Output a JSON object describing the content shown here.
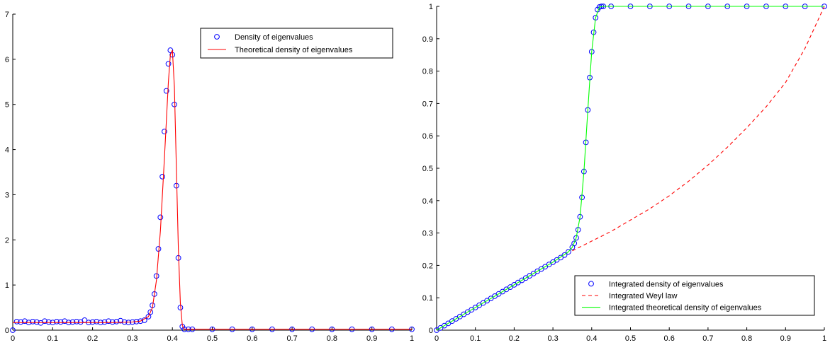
{
  "chart_data": [
    {
      "type": "scatter",
      "title": "",
      "xlabel": "",
      "ylabel": "",
      "xlim": [
        0,
        1
      ],
      "ylim": [
        0,
        7
      ],
      "xticks": [
        0,
        0.1,
        0.2,
        0.3,
        0.4,
        0.5,
        0.6,
        0.7,
        0.8,
        0.9,
        1
      ],
      "yticks": [
        0,
        1,
        2,
        3,
        4,
        5,
        6,
        7
      ],
      "xtick_labels": [
        "0",
        "0.1",
        "0.2",
        "0.3",
        "0.4",
        "0.5",
        "0.6",
        "0.7",
        "0.8",
        "0.9",
        "1"
      ],
      "ytick_labels": [
        "0",
        "1",
        "2",
        "3",
        "4",
        "5",
        "6",
        "7"
      ],
      "grid": false,
      "legend_position": "top-right",
      "series": [
        {
          "name": "Density of eigenvalues",
          "style": "markers",
          "marker": "circle",
          "color": "#0000ff",
          "x": [
            0,
            0.01,
            0.02,
            0.03,
            0.04,
            0.05,
            0.06,
            0.07,
            0.08,
            0.09,
            0.1,
            0.11,
            0.12,
            0.13,
            0.14,
            0.15,
            0.16,
            0.17,
            0.18,
            0.19,
            0.2,
            0.21,
            0.22,
            0.23,
            0.24,
            0.25,
            0.26,
            0.27,
            0.28,
            0.29,
            0.3,
            0.31,
            0.32,
            0.33,
            0.34,
            0.345,
            0.35,
            0.355,
            0.36,
            0.365,
            0.37,
            0.375,
            0.38,
            0.385,
            0.39,
            0.395,
            0.4,
            0.405,
            0.41,
            0.415,
            0.42,
            0.425,
            0.43,
            0.44,
            0.45,
            0.5,
            0.55,
            0.6,
            0.65,
            0.7,
            0.75,
            0.8,
            0.85,
            0.9,
            0.95,
            1.0
          ],
          "y": [
            0.0,
            0.19,
            0.18,
            0.2,
            0.17,
            0.19,
            0.18,
            0.16,
            0.2,
            0.18,
            0.17,
            0.19,
            0.18,
            0.2,
            0.17,
            0.18,
            0.19,
            0.18,
            0.22,
            0.17,
            0.18,
            0.19,
            0.17,
            0.18,
            0.2,
            0.18,
            0.19,
            0.21,
            0.18,
            0.17,
            0.18,
            0.19,
            0.2,
            0.22,
            0.3,
            0.4,
            0.55,
            0.8,
            1.2,
            1.8,
            2.5,
            3.4,
            4.4,
            5.3,
            5.9,
            6.2,
            6.1,
            5.0,
            3.2,
            1.6,
            0.5,
            0.08,
            0.02,
            0.02,
            0.02,
            0.02,
            0.02,
            0.02,
            0.02,
            0.02,
            0.02,
            0.02,
            0.02,
            0.02,
            0.02,
            0.02
          ]
        },
        {
          "name": "Theoretical density of eigenvalues",
          "style": "line",
          "color": "#ff0000",
          "x": [
            0,
            0.05,
            0.1,
            0.15,
            0.2,
            0.25,
            0.3,
            0.32,
            0.34,
            0.35,
            0.36,
            0.37,
            0.38,
            0.39,
            0.395,
            0.4,
            0.405,
            0.41,
            0.415,
            0.42,
            0.425,
            0.43,
            0.5,
            0.6,
            0.7,
            0.8,
            0.9,
            1.0
          ],
          "y": [
            0.17,
            0.17,
            0.17,
            0.17,
            0.17,
            0.17,
            0.18,
            0.2,
            0.3,
            0.5,
            1.1,
            2.2,
            3.8,
            5.5,
            6.1,
            6.2,
            5.4,
            3.6,
            1.8,
            0.6,
            0.1,
            0.02,
            0.02,
            0.02,
            0.02,
            0.02,
            0.02,
            0.02
          ]
        }
      ]
    },
    {
      "type": "line",
      "title": "",
      "xlabel": "",
      "ylabel": "",
      "xlim": [
        0,
        1
      ],
      "ylim": [
        0,
        1
      ],
      "xticks": [
        0,
        0.1,
        0.2,
        0.3,
        0.4,
        0.5,
        0.6,
        0.7,
        0.8,
        0.9,
        1
      ],
      "yticks": [
        0,
        0.1,
        0.2,
        0.3,
        0.4,
        0.5,
        0.6,
        0.7,
        0.8,
        0.9,
        1
      ],
      "xtick_labels": [
        "0",
        "0.1",
        "0.2",
        "0.3",
        "0.4",
        "0.5",
        "0.6",
        "0.7",
        "0.8",
        "0.9",
        "1"
      ],
      "ytick_labels": [
        "0",
        "0.1",
        "0.2",
        "0.3",
        "0.4",
        "0.5",
        "0.6",
        "0.7",
        "0.8",
        "0.9",
        "1"
      ],
      "grid": false,
      "legend_position": "bottom-right",
      "series": [
        {
          "name": "Integrated density of eigenvalues",
          "style": "markers",
          "marker": "circle",
          "color": "#0000ff",
          "x": [
            0,
            0.01,
            0.02,
            0.03,
            0.04,
            0.05,
            0.06,
            0.07,
            0.08,
            0.09,
            0.1,
            0.11,
            0.12,
            0.13,
            0.14,
            0.15,
            0.16,
            0.17,
            0.18,
            0.19,
            0.2,
            0.21,
            0.22,
            0.23,
            0.24,
            0.25,
            0.26,
            0.27,
            0.28,
            0.29,
            0.3,
            0.31,
            0.32,
            0.33,
            0.34,
            0.35,
            0.355,
            0.36,
            0.365,
            0.37,
            0.375,
            0.38,
            0.385,
            0.39,
            0.395,
            0.4,
            0.405,
            0.41,
            0.415,
            0.42,
            0.425,
            0.43,
            0.45,
            0.5,
            0.55,
            0.6,
            0.65,
            0.7,
            0.75,
            0.8,
            0.85,
            0.9,
            0.95,
            1.0
          ],
          "y": [
            0.0,
            0.007,
            0.014,
            0.021,
            0.028,
            0.035,
            0.042,
            0.049,
            0.056,
            0.063,
            0.07,
            0.077,
            0.084,
            0.091,
            0.098,
            0.105,
            0.112,
            0.119,
            0.126,
            0.133,
            0.14,
            0.147,
            0.154,
            0.161,
            0.168,
            0.175,
            0.182,
            0.189,
            0.196,
            0.203,
            0.21,
            0.217,
            0.224,
            0.232,
            0.242,
            0.256,
            0.268,
            0.285,
            0.31,
            0.35,
            0.41,
            0.49,
            0.58,
            0.68,
            0.78,
            0.86,
            0.92,
            0.965,
            0.99,
            0.998,
            1.0,
            1.0,
            1.0,
            1.0,
            1.0,
            1.0,
            1.0,
            1.0,
            1.0,
            1.0,
            1.0,
            1.0,
            1.0,
            1.0
          ]
        },
        {
          "name": "Integrated Weyl law",
          "style": "dashed",
          "color": "#ff0000",
          "x": [
            0.35,
            0.4,
            0.45,
            0.5,
            0.55,
            0.6,
            0.65,
            0.7,
            0.75,
            0.8,
            0.85,
            0.9,
            0.95,
            1.0
          ],
          "y": [
            0.245,
            0.275,
            0.305,
            0.34,
            0.375,
            0.415,
            0.46,
            0.51,
            0.565,
            0.625,
            0.69,
            0.765,
            0.87,
            1.0
          ]
        },
        {
          "name": "Integrated theoretical density of eigenvalues",
          "style": "line",
          "color": "#00ff00",
          "x": [
            0,
            0.1,
            0.2,
            0.3,
            0.34,
            0.35,
            0.36,
            0.37,
            0.38,
            0.39,
            0.4,
            0.41,
            0.42,
            0.43,
            0.5,
            0.6,
            0.7,
            0.8,
            0.9,
            1.0
          ],
          "y": [
            0.0,
            0.07,
            0.14,
            0.21,
            0.242,
            0.256,
            0.285,
            0.35,
            0.49,
            0.68,
            0.86,
            0.965,
            0.998,
            1.0,
            1.0,
            1.0,
            1.0,
            1.0,
            1.0,
            1.0
          ]
        }
      ]
    }
  ]
}
